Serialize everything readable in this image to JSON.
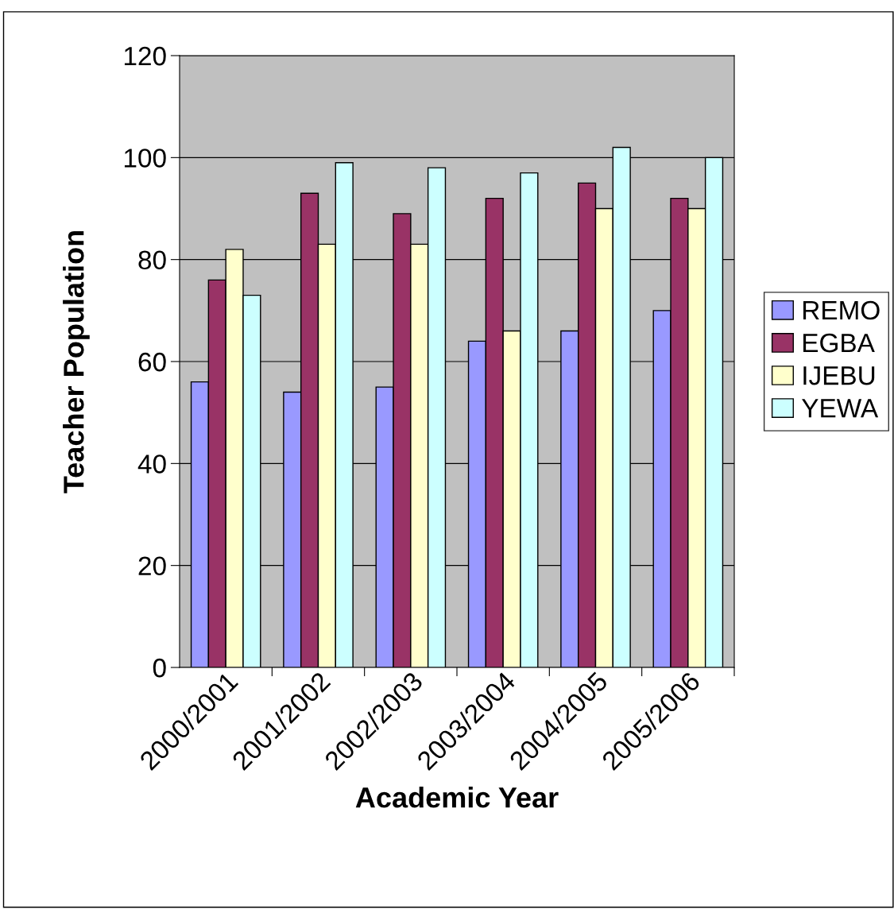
{
  "chart_data": {
    "type": "bar",
    "xlabel": "Academic Year",
    "ylabel": "Teacher Population",
    "categories": [
      "2000/2001",
      "2001/2002",
      "2002/2003",
      "2003/2004",
      "2004/2005",
      "2005/2006"
    ],
    "series": [
      {
        "name": "REMO",
        "color": "#9999ff",
        "values": [
          56,
          54,
          55,
          64,
          66,
          70
        ]
      },
      {
        "name": "EGBA",
        "color": "#993366",
        "values": [
          76,
          93,
          89,
          92,
          95,
          92
        ]
      },
      {
        "name": "IJEBU",
        "color": "#ffffcc",
        "values": [
          82,
          83,
          83,
          66,
          90,
          90
        ]
      },
      {
        "name": "YEWA",
        "color": "#ccffff",
        "values": [
          73,
          99,
          98,
          97,
          102,
          100
        ]
      }
    ],
    "ylim": [
      0,
      120
    ],
    "yticks": [
      0,
      20,
      40,
      60,
      80,
      100,
      120
    ],
    "grid": "y",
    "legend": "right"
  }
}
